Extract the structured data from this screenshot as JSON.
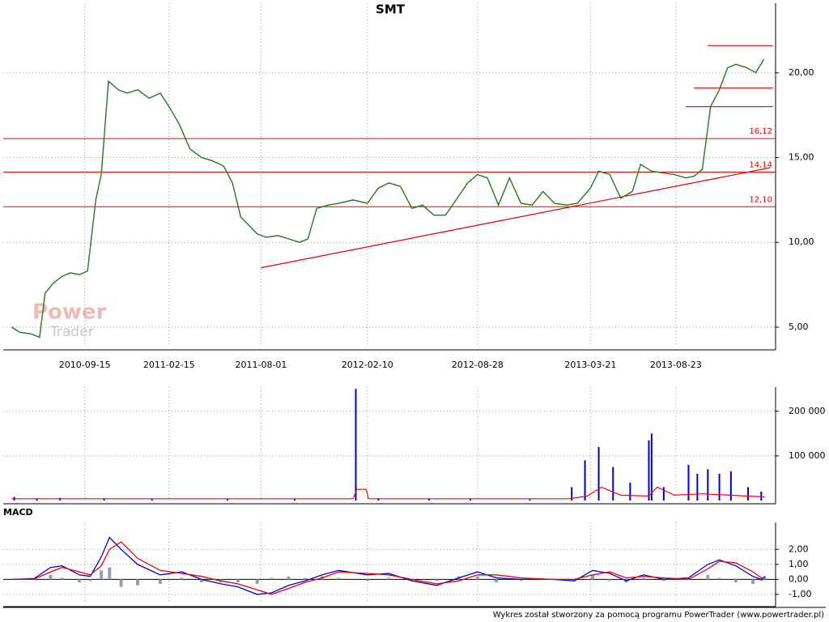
{
  "chart_data": [
    {
      "type": "line",
      "title": "SMT",
      "color": "#1f7a1f",
      "x": [
        "2010-05-05",
        "2010-05-20",
        "2010-06-10",
        "2010-06-25",
        "2010-07-05",
        "2010-07-20",
        "2010-08-05",
        "2010-08-20",
        "2010-09-05",
        "2010-09-20",
        "2010-10-05",
        "2010-10-15",
        "2010-10-28",
        "2010-11-15",
        "2010-12-01",
        "2010-12-20",
        "2011-01-10",
        "2011-01-30",
        "2011-02-15",
        "2011-03-05",
        "2011-03-25",
        "2011-04-15",
        "2011-05-05",
        "2011-05-25",
        "2011-06-10",
        "2011-06-25",
        "2011-07-10",
        "2011-07-25",
        "2011-08-10",
        "2011-09-01",
        "2011-09-20",
        "2011-10-10",
        "2011-10-25",
        "2011-11-10",
        "2011-12-01",
        "2011-12-20",
        "2012-01-15",
        "2012-02-10",
        "2012-03-01",
        "2012-03-20",
        "2012-04-10",
        "2012-05-01",
        "2012-05-20",
        "2012-06-10",
        "2012-07-01",
        "2012-07-20",
        "2012-08-10",
        "2012-08-28",
        "2012-09-15",
        "2012-10-05",
        "2012-10-25",
        "2012-11-15",
        "2012-12-05",
        "2012-12-25",
        "2013-01-15",
        "2013-02-05",
        "2013-02-25",
        "2013-03-21",
        "2013-04-05",
        "2013-04-25",
        "2013-05-15",
        "2013-06-05",
        "2013-06-20",
        "2013-07-10",
        "2013-07-30",
        "2013-08-20",
        "2013-09-10",
        "2013-09-25",
        "2013-10-10",
        "2013-10-25",
        "2013-11-10",
        "2013-11-25",
        "2013-12-10",
        "2013-12-30",
        "2014-01-15",
        "2014-01-30"
      ],
      "values": [
        5.0,
        4.7,
        4.6,
        4.4,
        7.0,
        7.6,
        8.0,
        8.2,
        8.1,
        8.3,
        12.5,
        14.0,
        19.5,
        19.0,
        18.8,
        19.0,
        18.5,
        18.8,
        18.0,
        17.0,
        15.5,
        15.0,
        14.8,
        14.5,
        13.5,
        11.5,
        11.0,
        10.5,
        10.3,
        10.4,
        10.2,
        10.0,
        10.2,
        12.0,
        12.2,
        12.3,
        12.5,
        12.3,
        13.2,
        13.5,
        13.3,
        12.0,
        12.2,
        11.6,
        11.6,
        12.5,
        13.5,
        14.0,
        13.8,
        12.2,
        13.8,
        12.3,
        12.2,
        13.0,
        12.3,
        12.2,
        12.3,
        13.2,
        14.2,
        14.0,
        12.6,
        13.0,
        14.6,
        14.2,
        14.1,
        14.0,
        13.8,
        13.9,
        14.3,
        18.0,
        19.0,
        20.3,
        20.5,
        20.3,
        20.0,
        20.8
      ],
      "xlim": [
        "2010-04-20",
        "2014-02-20"
      ],
      "xticks": [
        "2010-09-15",
        "2011-02-15",
        "2011-08-01",
        "2012-02-10",
        "2012-08-28",
        "2013-03-21",
        "2013-08-23"
      ],
      "ylim": [
        3.85,
        24.1
      ],
      "yticks": [
        {
          "value": 5,
          "label": "5,00"
        },
        {
          "value": 10,
          "label": "10,00"
        },
        {
          "value": 15,
          "label": "15,00"
        },
        {
          "value": 20,
          "label": "20,00"
        }
      ],
      "grid": true,
      "line_color": "#e00000",
      "levels": [
        {
          "value": 16.12,
          "label": "16,12"
        },
        {
          "value": 14.14,
          "label": "14,14"
        },
        {
          "value": 12.1,
          "label": "12,10"
        }
      ],
      "segments": [
        {
          "x": [
            "2011-08-01",
            "2014-02-10"
          ],
          "values": [
            8.5,
            14.4
          ]
        },
        {
          "x": [
            "2013-10-20",
            "2014-02-15"
          ],
          "values": [
            21.6,
            21.6
          ]
        },
        {
          "x": [
            "2013-09-25",
            "2014-02-15"
          ],
          "values": [
            19.1,
            19.1
          ]
        },
        {
          "x": [
            "2013-09-10",
            "2014-02-15"
          ],
          "values": [
            18.0,
            18.0
          ]
        }
      ]
    },
    {
      "type": "bar",
      "color": "#0000cc",
      "x": [
        "2010-05-10",
        "2010-06-20",
        "2010-08-01",
        "2010-10-20",
        "2011-01-15",
        "2011-06-01",
        "2011-10-01",
        "2012-01-20",
        "2012-03-01",
        "2012-06-01",
        "2012-08-15",
        "2012-12-01",
        "2013-02-15",
        "2013-03-11",
        "2013-04-05",
        "2013-05-01",
        "2013-06-01",
        "2013-07-05",
        "2013-07-10",
        "2013-08-01",
        "2013-09-15",
        "2013-10-01",
        "2013-10-20",
        "2013-11-10",
        "2013-12-01",
        "2014-01-01",
        "2014-01-25"
      ],
      "values": [
        8000,
        5000,
        6000,
        5000,
        4000,
        3000,
        4000,
        250000,
        5000,
        4000,
        4000,
        3000,
        30000,
        90000,
        120000,
        75000,
        40000,
        135000,
        150000,
        30000,
        80000,
        60000,
        70000,
        60000,
        65000,
        30000,
        20000
      ],
      "ylim": [
        0,
        254000
      ],
      "yticks": [
        {
          "value": 100000,
          "label": "100 000"
        },
        {
          "value": 200000,
          "label": "200 000"
        }
      ],
      "average": {
        "color": "#ff0000",
        "x": [
          "2010-05-05",
          "2012-01-15",
          "2012-01-22",
          "2012-02-08",
          "2012-02-12",
          "2013-02-10",
          "2013-03-15",
          "2013-04-10",
          "2013-05-15",
          "2013-07-05",
          "2013-07-20",
          "2013-08-20",
          "2013-10-10",
          "2014-02-01"
        ],
        "values": [
          4000,
          4000,
          25000,
          25000,
          4000,
          4000,
          10000,
          30000,
          12000,
          10000,
          30000,
          12000,
          15000,
          8000
        ]
      }
    },
    {
      "type": "macd",
      "title": "MACD",
      "x": [
        "2010-05-05",
        "2010-06-15",
        "2010-07-15",
        "2010-08-05",
        "2010-09-05",
        "2010-09-25",
        "2010-10-15",
        "2010-10-30",
        "2010-11-20",
        "2010-12-20",
        "2011-01-30",
        "2011-03-10",
        "2011-04-15",
        "2011-05-20",
        "2011-06-20",
        "2011-07-25",
        "2011-08-20",
        "2011-09-20",
        "2011-10-20",
        "2011-11-20",
        "2011-12-20",
        "2012-02-10",
        "2012-03-20",
        "2012-05-01",
        "2012-06-15",
        "2012-07-25",
        "2012-08-28",
        "2012-10-01",
        "2012-11-15",
        "2013-01-10",
        "2013-02-20",
        "2013-03-25",
        "2013-04-25",
        "2013-05-25",
        "2013-06-25",
        "2013-08-01",
        "2013-09-15",
        "2013-10-20",
        "2013-11-10",
        "2013-12-10",
        "2014-01-10",
        "2014-01-25",
        "2014-02-01"
      ],
      "series": [
        {
          "color": "#0000dd",
          "values": [
            0,
            0.05,
            0.8,
            0.9,
            0.3,
            0.2,
            1.5,
            2.8,
            2.0,
            1.0,
            0.3,
            0.5,
            0.0,
            -0.3,
            -0.5,
            -1.0,
            -0.9,
            -0.4,
            -0.1,
            0.3,
            0.6,
            0.3,
            0.4,
            -0.1,
            -0.4,
            0.1,
            0.5,
            0.1,
            0.0,
            0.0,
            -0.1,
            0.6,
            0.4,
            -0.1,
            0.3,
            0.0,
            0.1,
            1.0,
            1.3,
            0.9,
            0.2,
            0.0,
            0.2
          ]
        },
        {
          "color": "#ee0000",
          "values": [
            0,
            0.02,
            0.5,
            0.8,
            0.5,
            0.3,
            0.9,
            2.0,
            2.5,
            1.4,
            0.6,
            0.4,
            0.2,
            -0.1,
            -0.3,
            -0.7,
            -1.0,
            -0.6,
            -0.2,
            0.1,
            0.5,
            0.4,
            0.3,
            0.0,
            -0.3,
            -0.1,
            0.3,
            0.3,
            0.1,
            0.0,
            0.0,
            0.3,
            0.5,
            0.1,
            0.2,
            0.1,
            0.0,
            0.7,
            1.2,
            1.1,
            0.5,
            0.1,
            0.1
          ]
        }
      ],
      "histogram": {
        "color": "#8fa0b0",
        "values": [
          0,
          0.03,
          0.3,
          0.1,
          -0.2,
          -0.1,
          0.6,
          0.8,
          -0.5,
          -0.4,
          -0.3,
          0.1,
          -0.2,
          -0.2,
          -0.2,
          -0.3,
          0.1,
          0.2,
          0.1,
          0.2,
          0.1,
          -0.1,
          0.1,
          -0.1,
          -0.1,
          0.2,
          0.2,
          -0.2,
          -0.1,
          0.0,
          -0.1,
          0.3,
          -0.1,
          -0.2,
          0.1,
          -0.1,
          0.1,
          0.3,
          0.1,
          -0.2,
          -0.3,
          -0.1,
          0.1
        ]
      },
      "ylim": [
        -1.6,
        3.8
      ],
      "yticks": [
        {
          "value": -1,
          "label": "-1,00"
        },
        {
          "value": 0,
          "label": "0,00"
        },
        {
          "value": 1,
          "label": "1,00"
        },
        {
          "value": 2,
          "label": "2,00"
        }
      ]
    }
  ],
  "logo": {
    "line1": "Power",
    "line2": "Trader"
  },
  "footer": "Wykres został stworzony za pomocą programu PowerTrader (www.powertrader.pl)"
}
